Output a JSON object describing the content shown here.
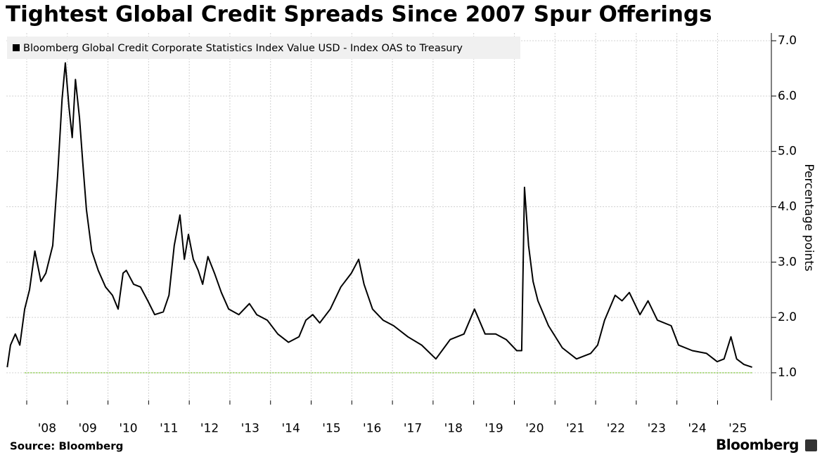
{
  "chart_data": {
    "type": "line",
    "title": "Tightest Global Credit Spreads Since 2007 Spur Offerings",
    "y_label": "Percentage points",
    "source": "Source: Bloomberg",
    "brand": "Bloomberg",
    "grid": true,
    "ylim": [
      0.5,
      7.14
    ],
    "yticks": [
      {
        "value": 1,
        "label": "1.0"
      },
      {
        "value": 2,
        "label": "2.0"
      },
      {
        "value": 3,
        "label": "3.0"
      },
      {
        "value": 4,
        "label": "4.0"
      },
      {
        "value": 5,
        "label": "5.0"
      },
      {
        "value": 6,
        "label": "6.0"
      },
      {
        "value": 7,
        "label": "7.0"
      }
    ],
    "xlim": [
      2007.5,
      2026.1
    ],
    "xticks": [
      {
        "value": 2008,
        "label": "'08"
      },
      {
        "value": 2009,
        "label": "'09"
      },
      {
        "value": 2010,
        "label": "'10"
      },
      {
        "value": 2011,
        "label": "'11"
      },
      {
        "value": 2012,
        "label": "'12"
      },
      {
        "value": 2013,
        "label": "'13"
      },
      {
        "value": 2014,
        "label": "'14"
      },
      {
        "value": 2015,
        "label": "'15"
      },
      {
        "value": 2016,
        "label": "'16"
      },
      {
        "value": 2017,
        "label": "'17"
      },
      {
        "value": 2018,
        "label": "'18"
      },
      {
        "value": 2019,
        "label": "'19"
      },
      {
        "value": 2020,
        "label": "'20"
      },
      {
        "value": 2021,
        "label": "'21"
      },
      {
        "value": 2022,
        "label": "'22"
      },
      {
        "value": 2023,
        "label": "'23"
      },
      {
        "value": 2024,
        "label": "'24"
      },
      {
        "value": 2025,
        "label": "'25"
      }
    ],
    "reference_line": {
      "value": 1.0,
      "color": "#8fd14f"
    },
    "x": [
      2007.52,
      2007.6,
      2007.72,
      2007.83,
      2007.95,
      2008.07,
      2008.2,
      2008.35,
      2008.47,
      2008.64,
      2008.76,
      2008.87,
      2008.95,
      2009.04,
      2009.12,
      2009.2,
      2009.3,
      2009.38,
      2009.47,
      2009.6,
      2009.76,
      2009.94,
      2010.11,
      2010.25,
      2010.37,
      2010.45,
      2010.63,
      2010.8,
      2010.98,
      2011.15,
      2011.36,
      2011.5,
      2011.63,
      2011.77,
      2011.88,
      2011.98,
      2012.1,
      2012.22,
      2012.33,
      2012.46,
      2012.62,
      2012.79,
      2012.97,
      2013.22,
      2013.48,
      2013.66,
      2013.92,
      2014.18,
      2014.44,
      2014.7,
      2014.87,
      2015.04,
      2015.21,
      2015.47,
      2015.73,
      2015.99,
      2016.17,
      2016.3,
      2016.51,
      2016.77,
      2017.03,
      2017.38,
      2017.72,
      2018.07,
      2018.42,
      2018.76,
      2019.02,
      2019.28,
      2019.54,
      2019.8,
      2020.06,
      2020.18,
      2020.25,
      2020.35,
      2020.46,
      2020.58,
      2020.84,
      2021.18,
      2021.53,
      2021.88,
      2022.05,
      2022.22,
      2022.48,
      2022.65,
      2022.83,
      2023.09,
      2023.29,
      2023.52,
      2023.86,
      2024.04,
      2024.38,
      2024.73,
      2024.99,
      2025.16,
      2025.33,
      2025.47,
      2025.65,
      2025.85
    ],
    "series": [
      {
        "name": "Bloomberg Global Credit Corporate Statistics Index Value USD - Index OAS to Treasury",
        "color": "#000000",
        "values": [
          1.1,
          1.5,
          1.7,
          1.5,
          2.15,
          2.5,
          3.2,
          2.65,
          2.8,
          3.3,
          4.55,
          5.95,
          6.6,
          5.8,
          5.25,
          6.3,
          5.6,
          4.8,
          3.95,
          3.2,
          2.85,
          2.55,
          2.4,
          2.15,
          2.8,
          2.85,
          2.6,
          2.55,
          2.3,
          2.05,
          2.1,
          2.4,
          3.3,
          3.85,
          3.05,
          3.5,
          3.05,
          2.85,
          2.6,
          3.1,
          2.8,
          2.45,
          2.15,
          2.05,
          2.25,
          2.05,
          1.95,
          1.7,
          1.55,
          1.65,
          1.95,
          2.05,
          1.9,
          2.15,
          2.55,
          2.8,
          3.05,
          2.6,
          2.15,
          1.95,
          1.85,
          1.65,
          1.5,
          1.25,
          1.6,
          1.7,
          2.15,
          1.7,
          1.7,
          1.6,
          1.4,
          1.4,
          4.35,
          3.3,
          2.65,
          2.3,
          1.85,
          1.45,
          1.25,
          1.35,
          1.5,
          1.95,
          2.4,
          2.3,
          2.45,
          2.05,
          2.3,
          1.95,
          1.85,
          1.5,
          1.4,
          1.35,
          1.2,
          1.25,
          1.65,
          1.25,
          1.15,
          1.1
        ]
      }
    ]
  }
}
